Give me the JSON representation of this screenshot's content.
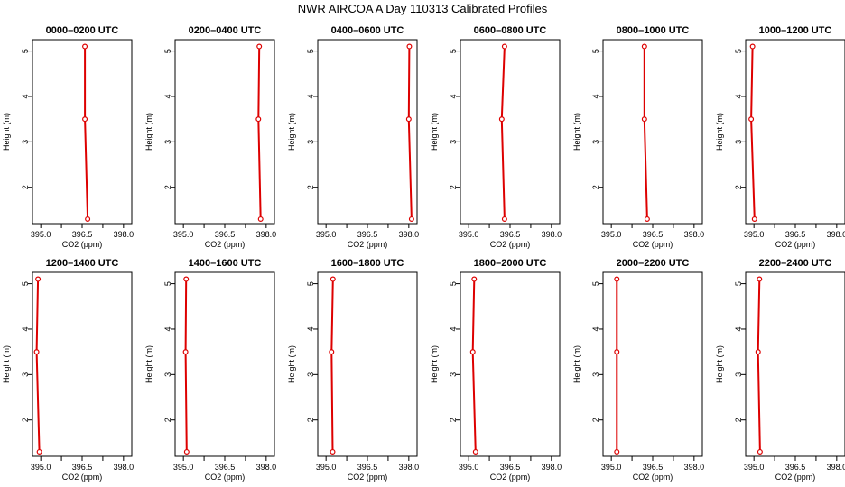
{
  "title": "NWR AIRCOA A  Day 110313  Calibrated Profiles",
  "chart_data": {
    "type": "line",
    "title": "NWR AIRCOA A  Day 110313  Calibrated Profiles",
    "xlabel": "CO2 (ppm)",
    "ylabel": "Height (m)",
    "xlim": [
      394.7,
      398.3
    ],
    "ylim": [
      1.2,
      5.25
    ],
    "xticks": [
      "395.0",
      "396.5",
      "398.0"
    ],
    "yticks": [
      "2",
      "3",
      "4",
      "5"
    ],
    "heights": [
      5.1,
      3.5,
      1.3
    ],
    "line_color": "#dd0000",
    "panels": [
      {
        "title": "0000–0200 UTC",
        "values": [
          396.6,
          396.6,
          396.7
        ]
      },
      {
        "title": "0200–0400 UTC",
        "values": [
          397.75,
          397.72,
          397.8
        ]
      },
      {
        "title": "0400–0600 UTC",
        "values": [
          398.02,
          398.0,
          398.1
        ]
      },
      {
        "title": "0600–0800 UTC",
        "values": [
          396.3,
          396.2,
          396.3
        ]
      },
      {
        "title": "0800–1000 UTC",
        "values": [
          396.2,
          396.2,
          396.3
        ]
      },
      {
        "title": "1000–1200 UTC",
        "values": [
          394.95,
          394.9,
          395.02
        ]
      },
      {
        "title": "1200–1400 UTC",
        "values": [
          394.9,
          394.85,
          394.95
        ]
      },
      {
        "title": "1400–1600 UTC",
        "values": [
          395.1,
          395.08,
          395.12
        ]
      },
      {
        "title": "1600–1800 UTC",
        "values": [
          395.25,
          395.2,
          395.24
        ]
      },
      {
        "title": "1800–2000 UTC",
        "values": [
          395.2,
          395.15,
          395.25
        ]
      },
      {
        "title": "2000–2200 UTC",
        "values": [
          395.2,
          395.2,
          395.2
        ]
      },
      {
        "title": "2200–2400 UTC",
        "values": [
          395.2,
          395.15,
          395.22
        ]
      }
    ]
  }
}
